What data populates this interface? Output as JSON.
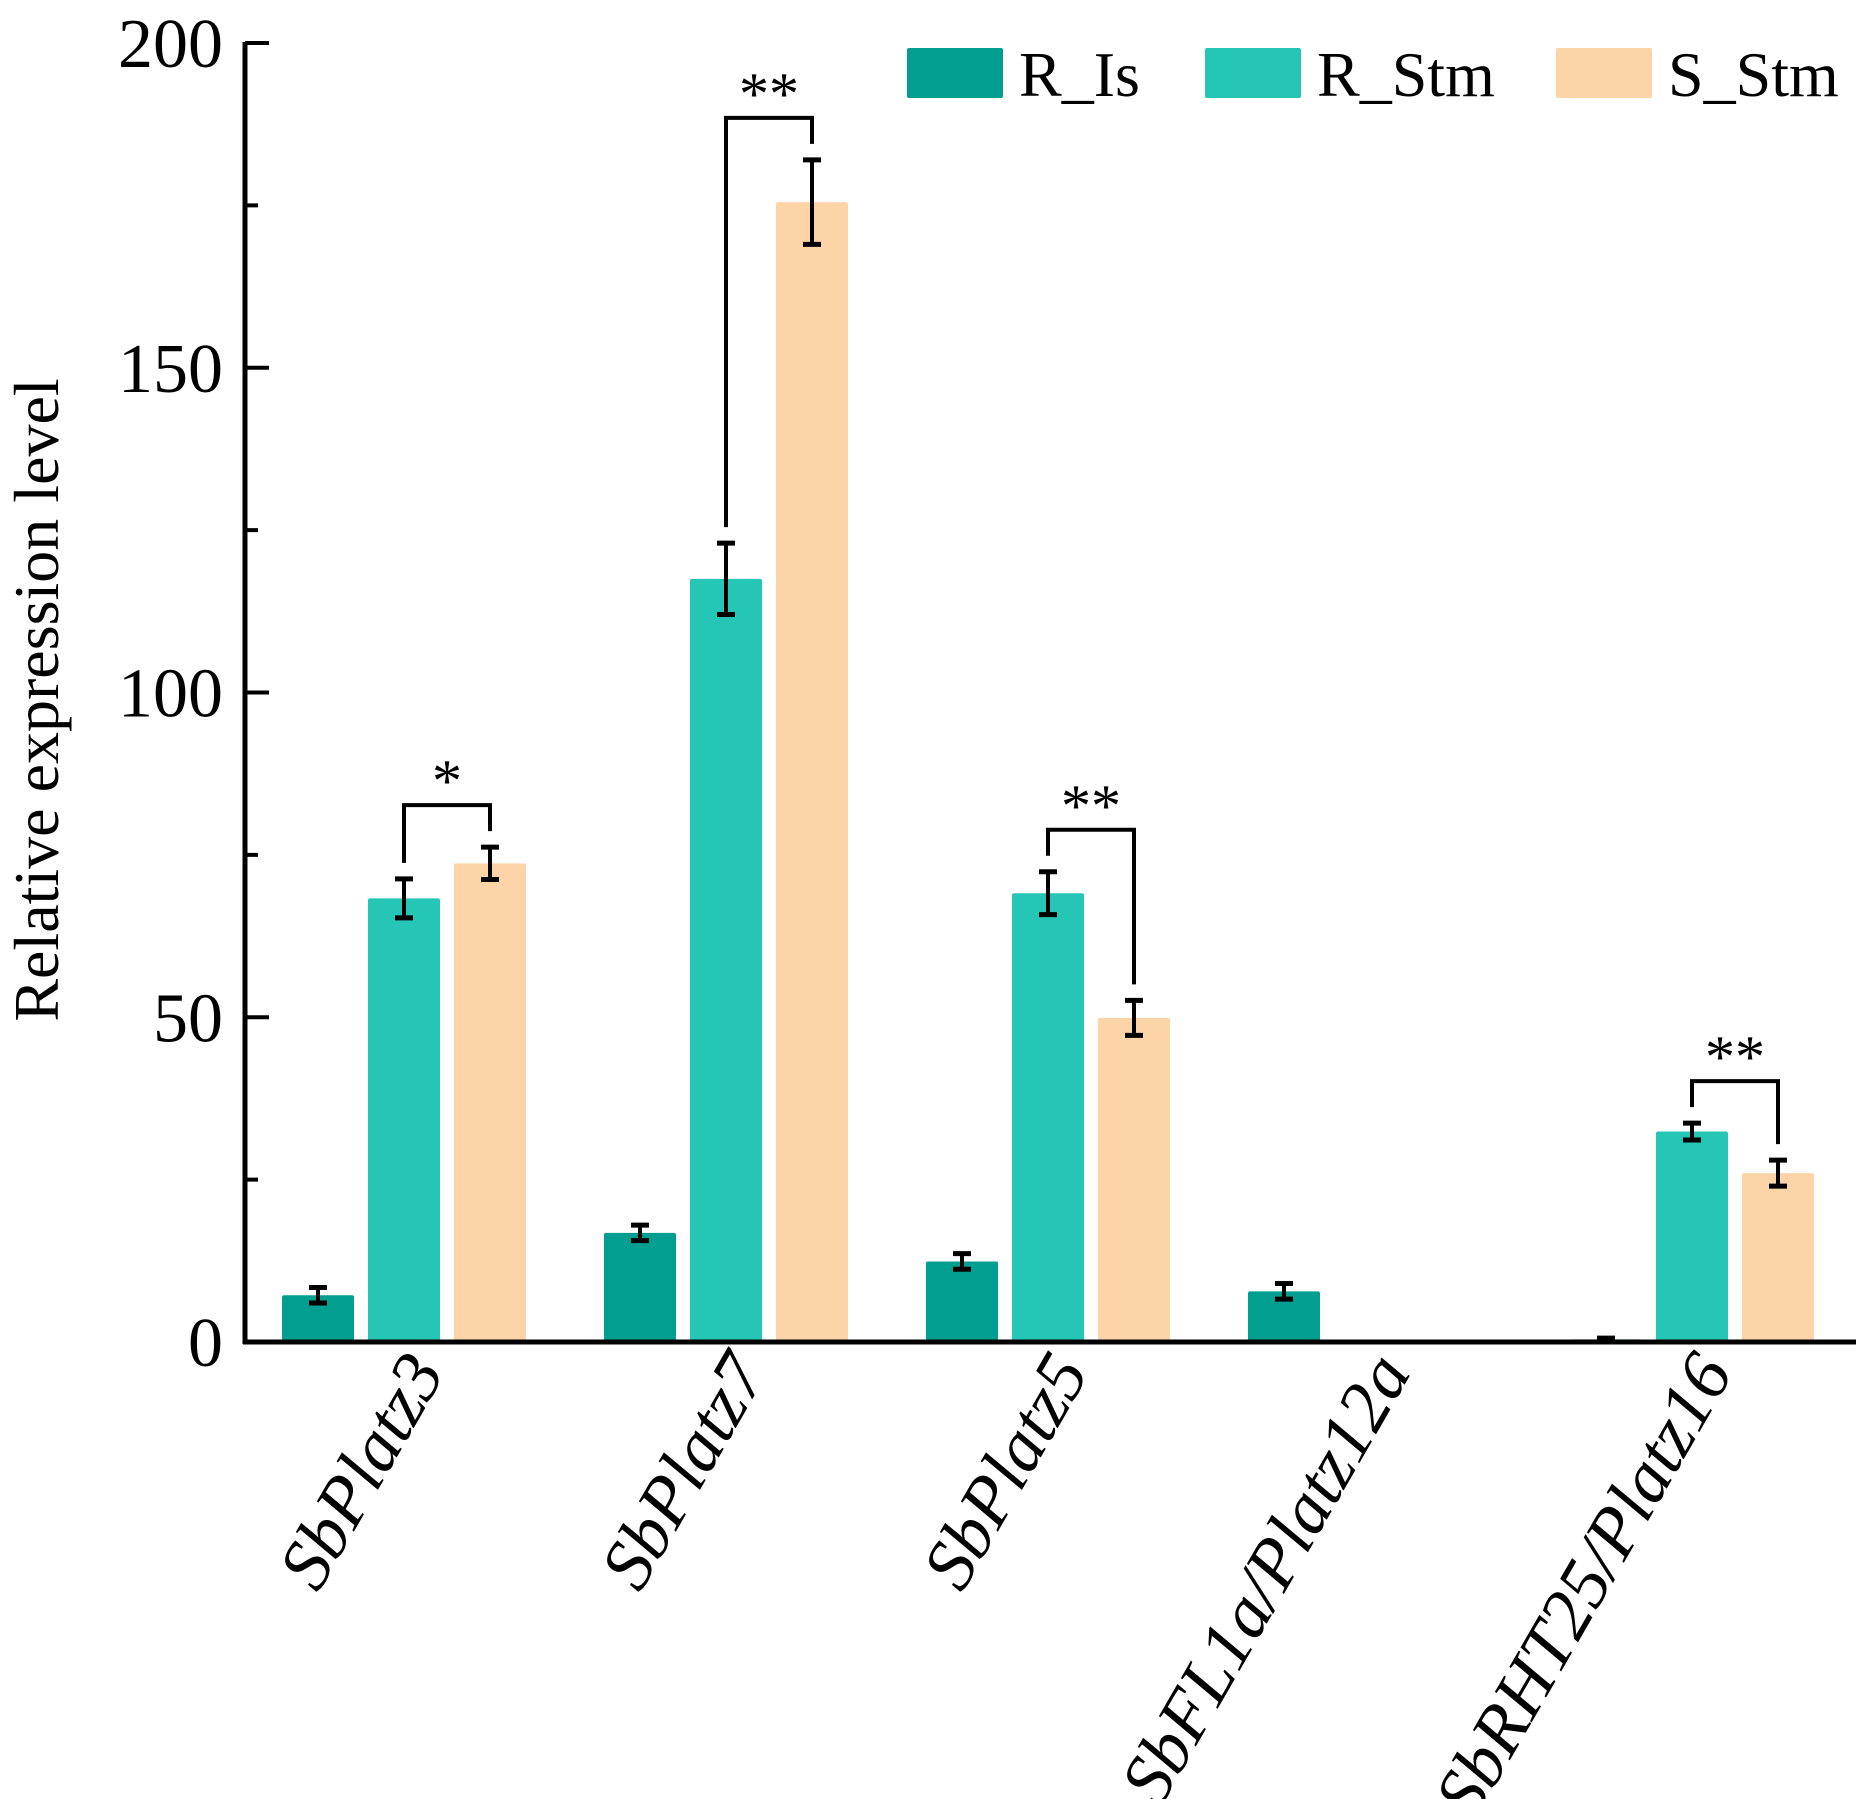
{
  "chart_data": {
    "type": "bar",
    "title": "",
    "xlabel": "",
    "ylabel": "Relative expression level",
    "ylim": [
      0,
      200
    ],
    "yticks": [
      "0",
      "50",
      "100",
      "150",
      "200"
    ],
    "ytick_values": [
      0,
      50,
      100,
      150,
      200
    ],
    "yminor_values": [
      25,
      75,
      125,
      175
    ],
    "grid": false,
    "legend_position": "top-right",
    "categories": [
      "SbPlatz3",
      "SbPlatz7",
      "SbPlatz5",
      "SbFL1a/Platz12a",
      "SbRHT25/Platz16"
    ],
    "series": [
      {
        "name": "R_Is",
        "color": "#029E8F",
        "values": [
          7.2,
          16.8,
          12.4,
          7.8,
          0.4
        ],
        "errors": [
          1.2,
          1.2,
          1.2,
          1.2,
          0.2
        ]
      },
      {
        "name": "R_Stm",
        "color": "#26C6B6",
        "values": [
          68.3,
          117.5,
          69.1,
          0,
          32.4
        ],
        "errors": [
          3.0,
          5.5,
          3.3,
          0,
          1.3
        ]
      },
      {
        "name": "S_Stm",
        "color": "#FCD4A8",
        "values": [
          73.7,
          175.5,
          49.9,
          0,
          26.0
        ],
        "errors": [
          2.5,
          6.5,
          2.7,
          0,
          2.0
        ]
      }
    ],
    "significance": [
      {
        "category": "SbPlatz3",
        "label": "*"
      },
      {
        "category": "SbPlatz7",
        "label": "**"
      },
      {
        "category": "SbPlatz5",
        "label": "**"
      },
      {
        "category": "SbRHT25/Platz16",
        "label": "**"
      }
    ]
  }
}
